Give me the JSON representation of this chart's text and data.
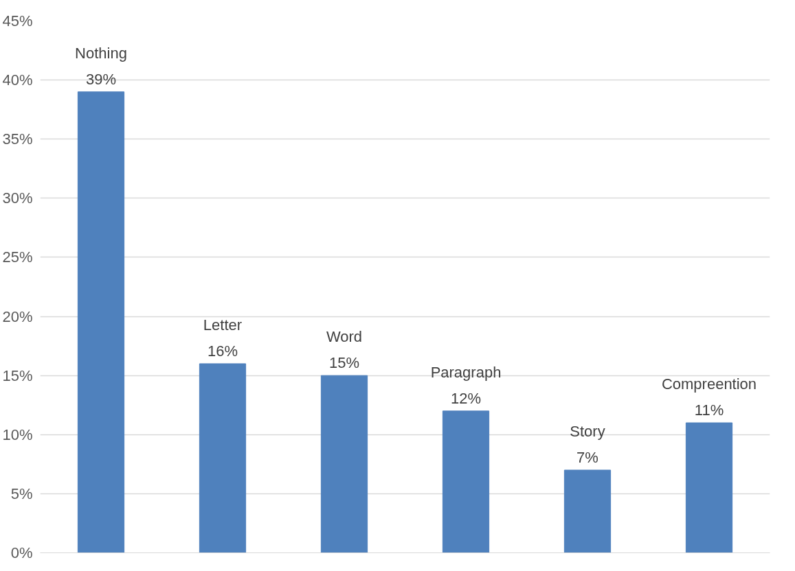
{
  "chart_data": {
    "type": "bar",
    "categories": [
      "Nothing",
      "Letter",
      "Word",
      "Paragraph",
      "Story",
      "Compreention"
    ],
    "values": [
      39,
      16,
      15,
      12,
      7,
      11
    ],
    "value_labels": [
      "39%",
      "16%",
      "15%",
      "12%",
      "7%",
      "11%"
    ],
    "color": "#4f81bd",
    "ylim": [
      0,
      45
    ],
    "yticks": [
      {
        "value": 0,
        "label": "0%"
      },
      {
        "value": 5,
        "label": "5%"
      },
      {
        "value": 10,
        "label": "10%"
      },
      {
        "value": 15,
        "label": "15%"
      },
      {
        "value": 20,
        "label": "20%"
      },
      {
        "value": 25,
        "label": "25%"
      },
      {
        "value": 30,
        "label": "30%"
      },
      {
        "value": 35,
        "label": "35%"
      },
      {
        "value": 40,
        "label": "40%"
      },
      {
        "value": 45,
        "label": "45%"
      }
    ],
    "grid": "y",
    "tick_labels": "y"
  }
}
